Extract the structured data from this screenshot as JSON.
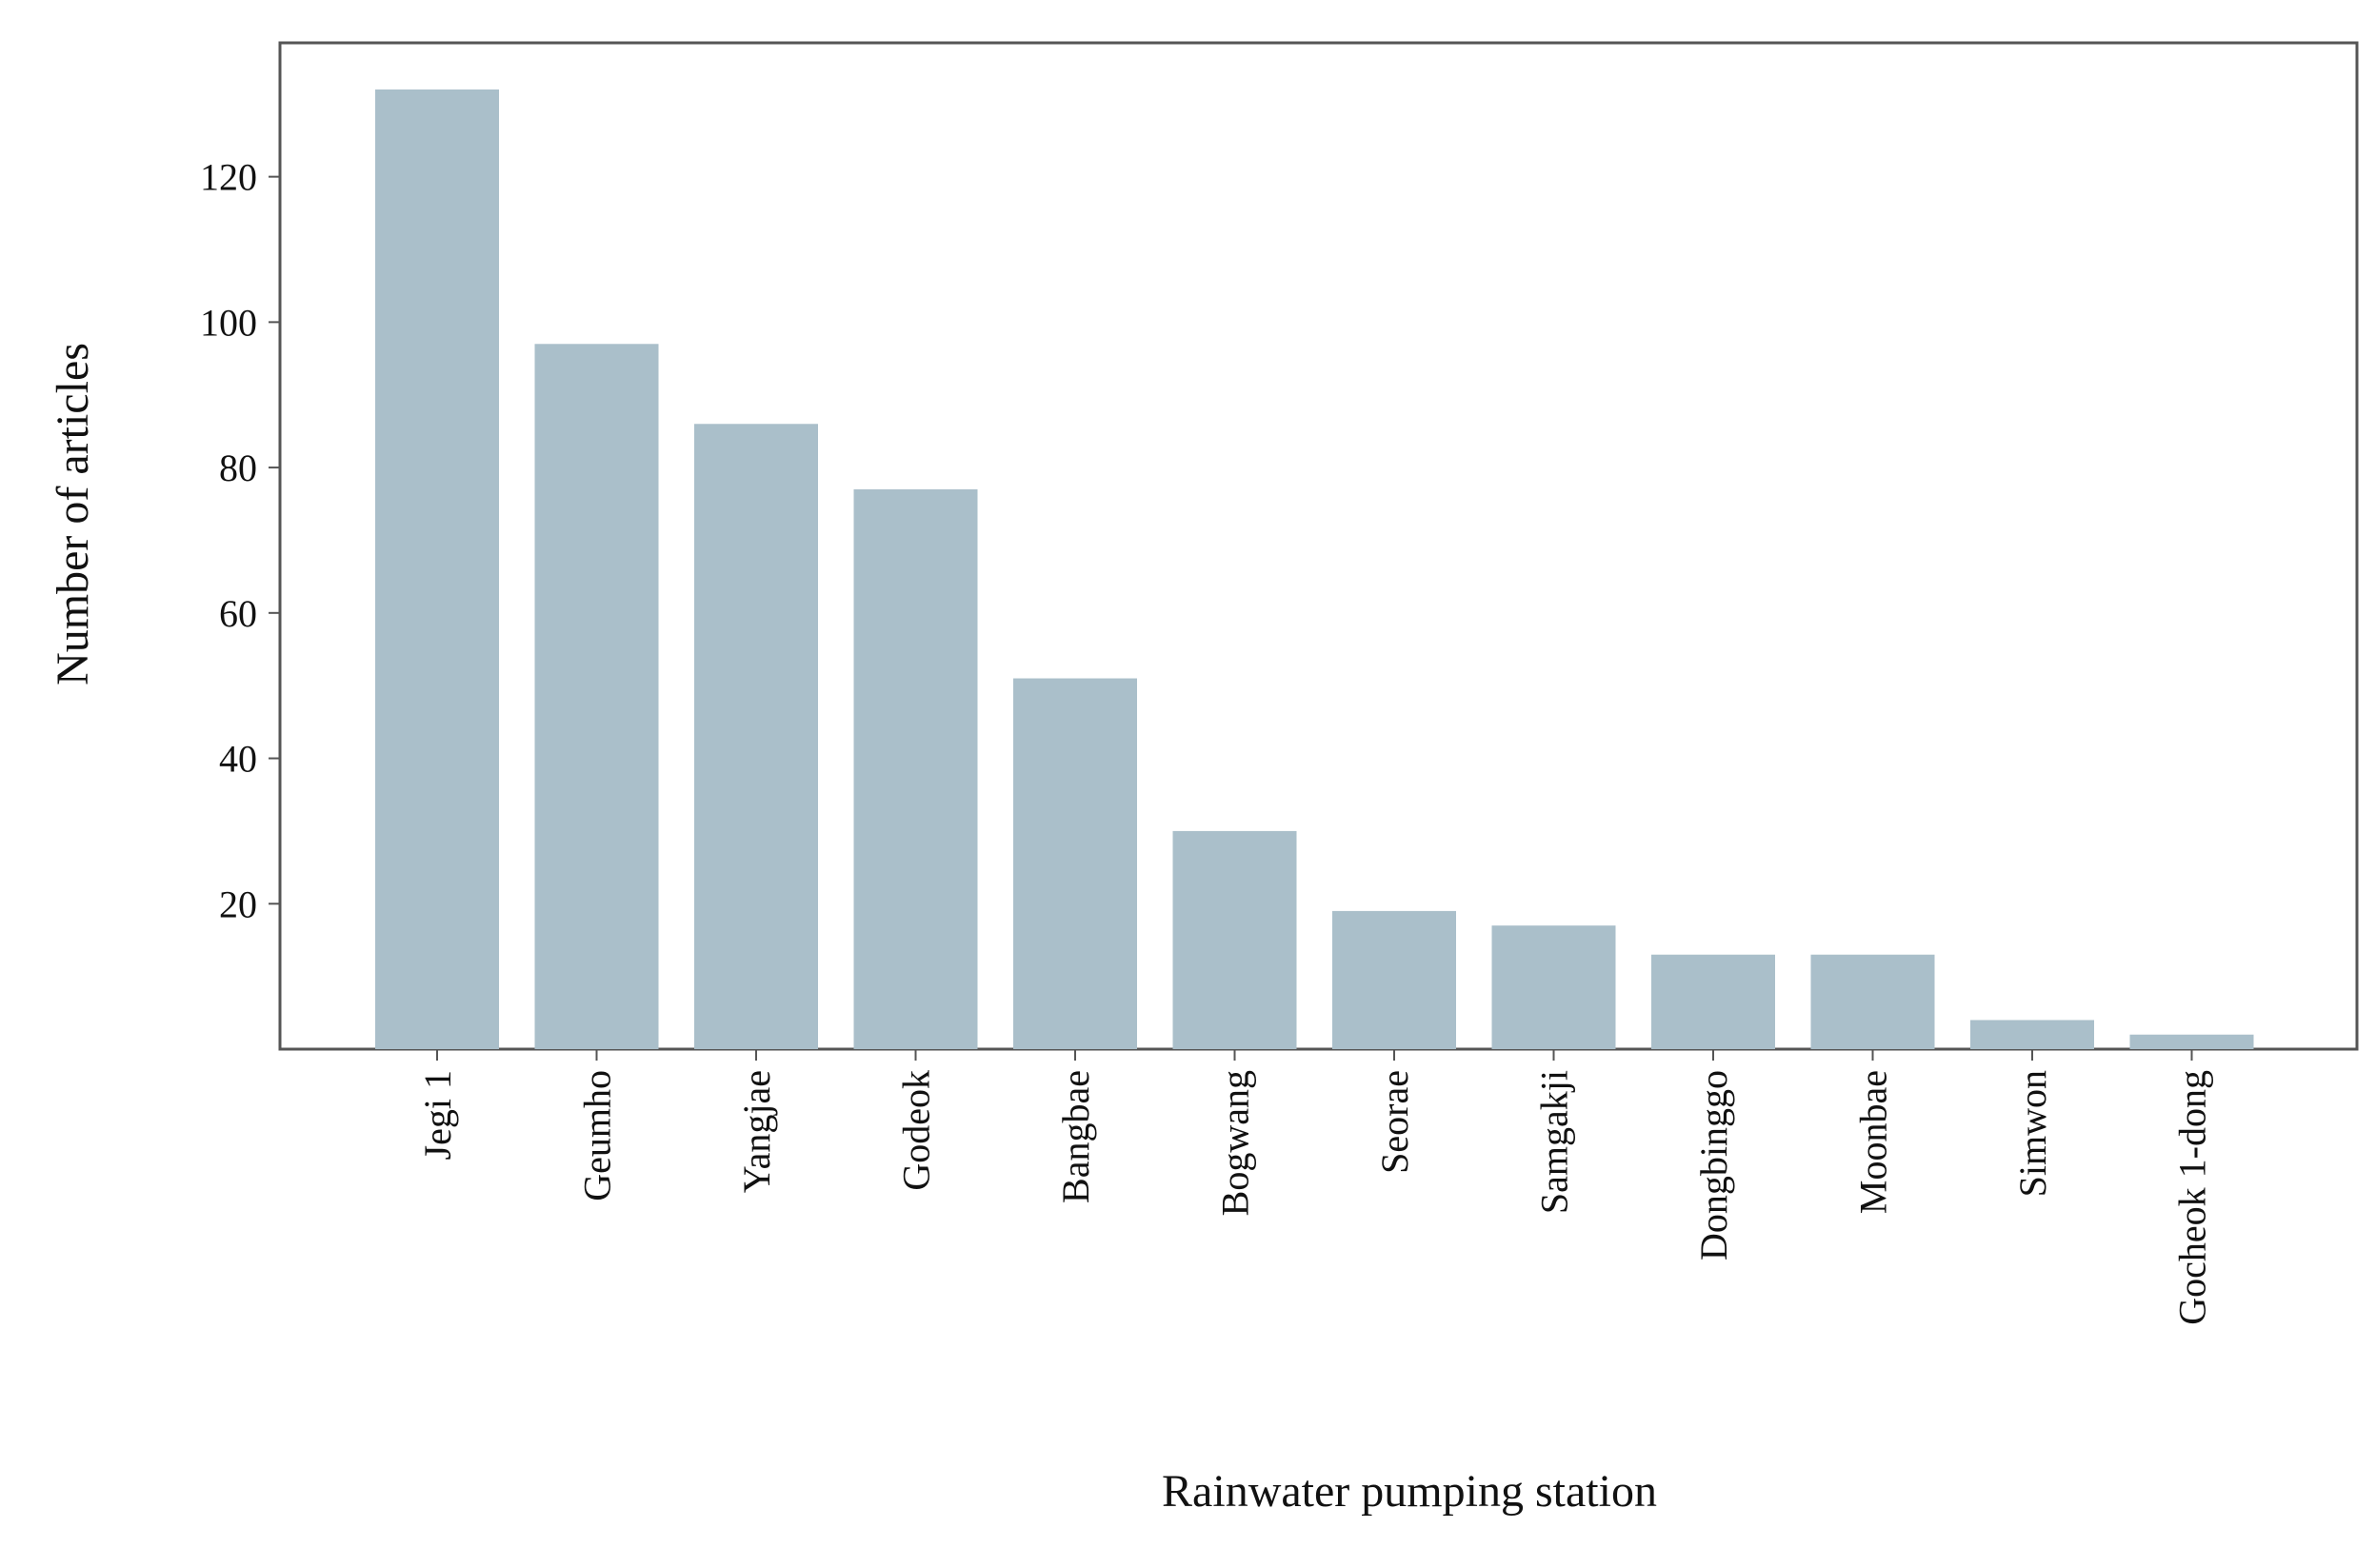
{
  "chart_data": {
    "type": "bar",
    "categories": [
      "Jegi 1",
      "Geumho",
      "Yangjae",
      "Godeok",
      "Bangbae",
      "Bogwang",
      "Seorae",
      "Samgakji",
      "Dongbinggo",
      "Moonbae",
      "Simwon",
      "Gocheok 1-dong"
    ],
    "values": [
      132,
      97,
      86,
      77,
      51,
      30,
      19,
      17,
      13,
      13,
      4,
      2
    ],
    "title": "",
    "xlabel": "Rainwater pumping station",
    "ylabel": "Number of articles",
    "ylim": [
      0,
      139
    ],
    "yticks": [
      20,
      40,
      60,
      80,
      100,
      120
    ],
    "grid": false,
    "legend": "none",
    "bar_color": "#aabfca",
    "axis_color": "#555555"
  }
}
